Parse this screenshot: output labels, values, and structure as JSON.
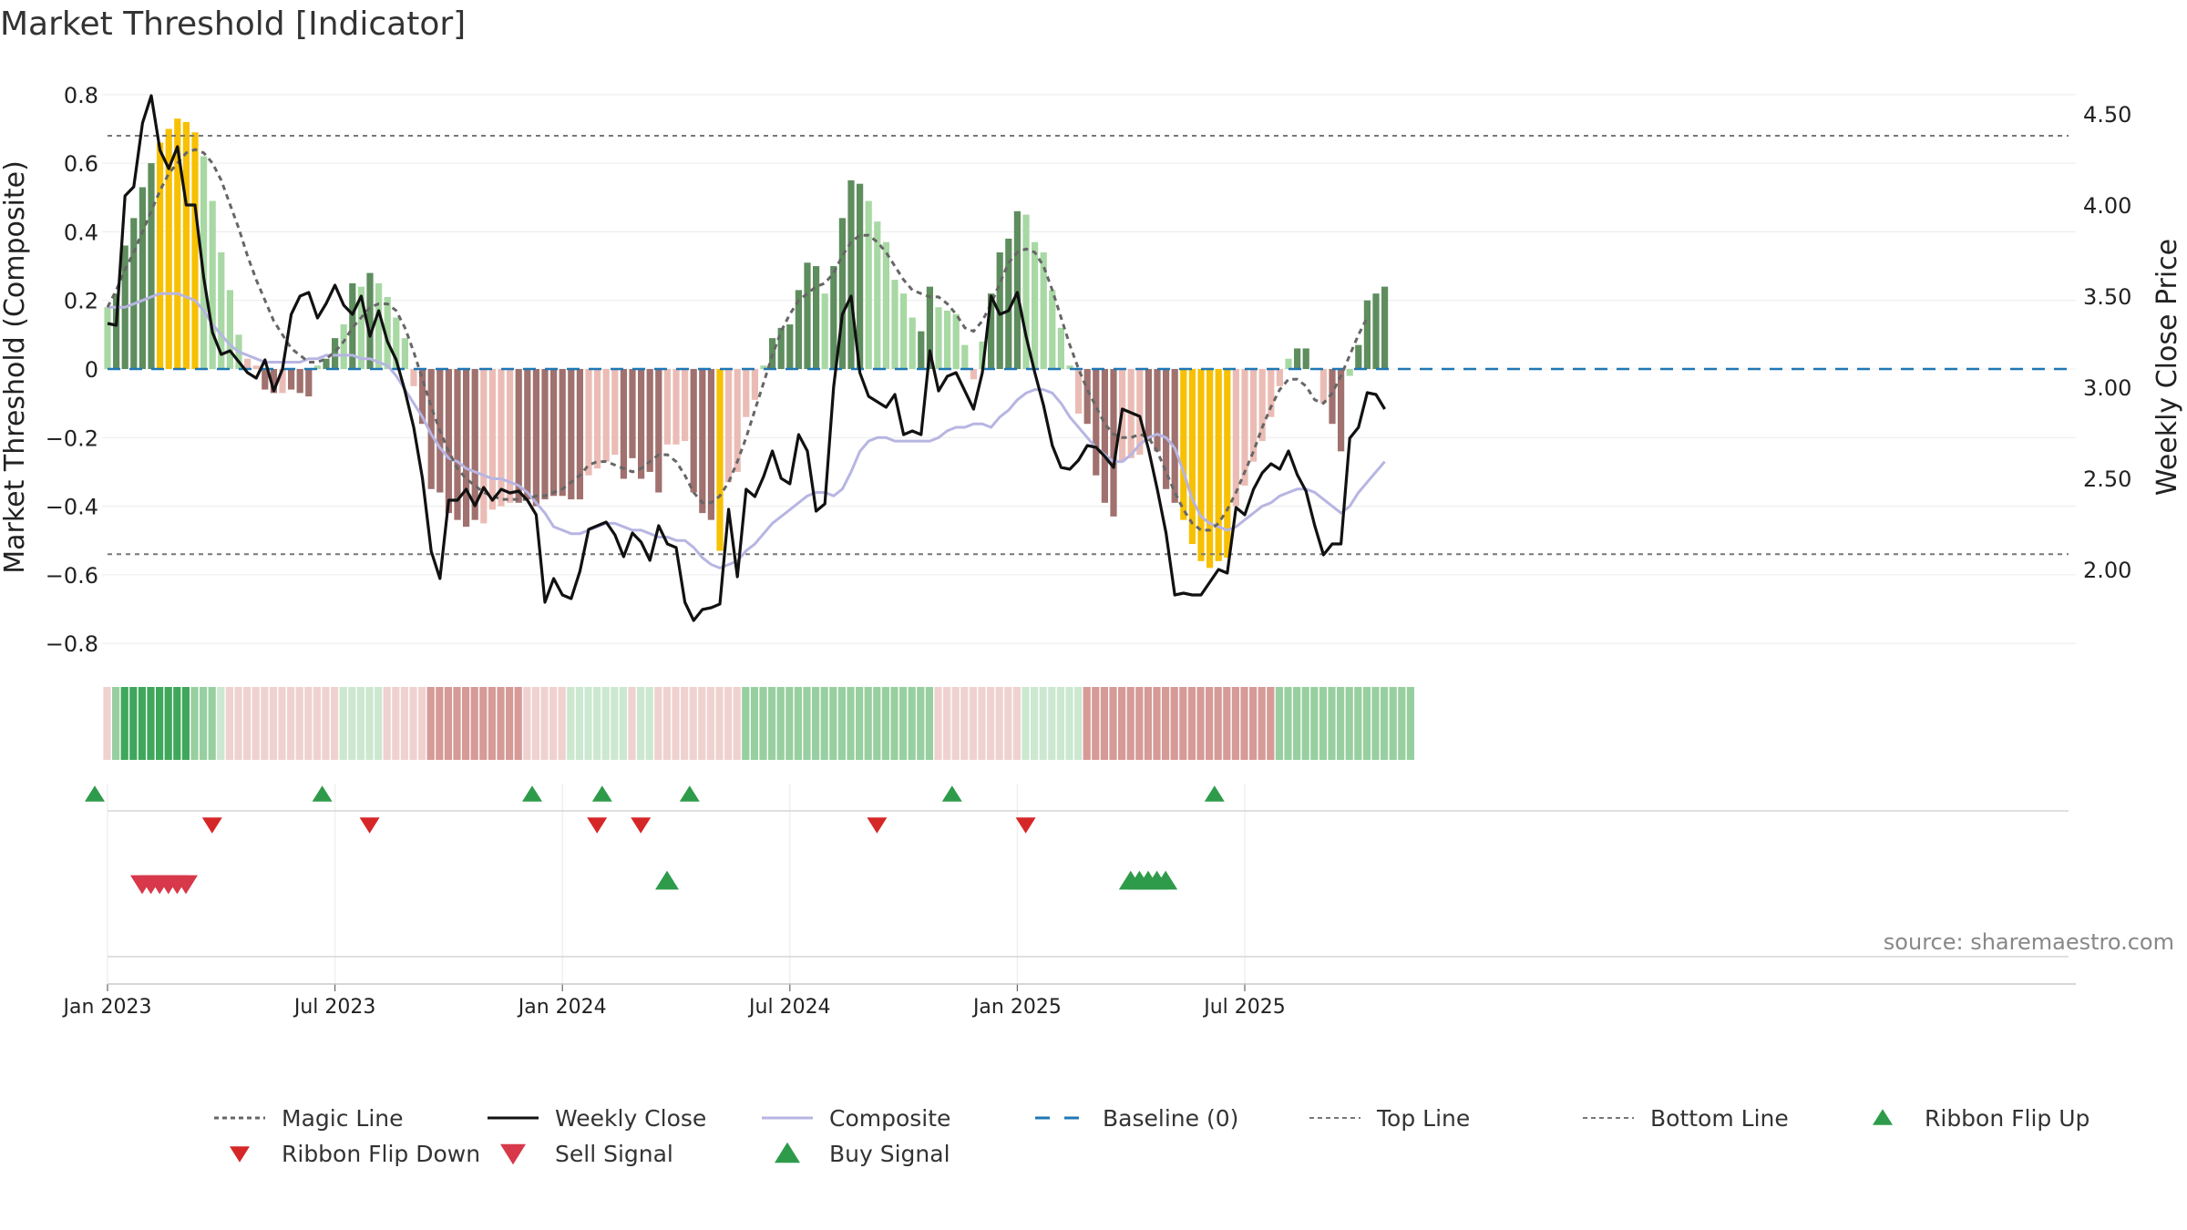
{
  "chart_data": {
    "type": "bar",
    "title": "Market Threshold [Indicator]",
    "ylabel": "Market Threshold (Composite)",
    "y2label": "Weekly Close Price",
    "ylim": [
      -0.85,
      0.85
    ],
    "y2lim": [
      1.5,
      4.7
    ],
    "y_ticks": [
      {
        "v": 0.8,
        "label": "0.8"
      },
      {
        "v": 0.6,
        "label": "0.6"
      },
      {
        "v": 0.4,
        "label": "0.4"
      },
      {
        "v": 0.2,
        "label": "0.2"
      },
      {
        "v": 0,
        "label": "0"
      },
      {
        "v": -0.2,
        "label": "−0.2"
      },
      {
        "v": -0.4,
        "label": "−0.4"
      },
      {
        "v": -0.6,
        "label": "−0.6"
      },
      {
        "v": -0.8,
        "label": "−0.8"
      }
    ],
    "y2_ticks": [
      {
        "v": 4.5,
        "label": "4.50"
      },
      {
        "v": 4.0,
        "label": "4.00"
      },
      {
        "v": 3.5,
        "label": "3.50"
      },
      {
        "v": 3.0,
        "label": "3.00"
      },
      {
        "v": 2.5,
        "label": "2.50"
      },
      {
        "v": 2.0,
        "label": "2.00"
      }
    ],
    "x_ticks": [
      {
        "week": 0,
        "label": "Jan 2023"
      },
      {
        "week": 26,
        "label": "Jul 2023"
      },
      {
        "week": 52,
        "label": "Jan 2024"
      },
      {
        "week": 78,
        "label": "Jul 2024"
      },
      {
        "week": 104,
        "label": "Jan 2025"
      },
      {
        "week": 130,
        "label": "Jul 2025"
      }
    ],
    "top_line": 0.68,
    "bottom_line": -0.54,
    "baseline": 0,
    "grid": true,
    "legend_position": "bottom",
    "source_note": "source: sharemaestro.com",
    "colors": {
      "bull_strong": "#5e8d5e",
      "bull_weak": "#a8d8a3",
      "bear_strong": "#a0716e",
      "bear_weak": "#ebbcb5",
      "extreme": "#f7c000",
      "weekly_close": "#111111",
      "composite": "#b7b5e2",
      "magic_line": "#666666",
      "baseline": "#1f77b4",
      "threshold_lines": "#777777",
      "flip_up": "#2e9b4a",
      "flip_down": "#d62728",
      "sell": "#d7384a",
      "buy": "#2e9b4a"
    },
    "composite_bars": [
      0.18,
      0.22,
      0.36,
      0.44,
      0.53,
      0.6,
      0.66,
      0.7,
      0.73,
      0.72,
      0.69,
      0.62,
      0.49,
      0.34,
      0.23,
      0.1,
      0.03,
      0.01,
      -0.06,
      -0.07,
      -0.07,
      -0.06,
      -0.07,
      -0.08,
      0.01,
      0.03,
      0.09,
      0.13,
      0.25,
      0.24,
      0.28,
      0.25,
      0.21,
      0.15,
      0.09,
      -0.05,
      -0.16,
      -0.35,
      -0.36,
      -0.42,
      -0.44,
      -0.46,
      -0.44,
      -0.45,
      -0.41,
      -0.4,
      -0.39,
      -0.39,
      -0.38,
      -0.4,
      -0.38,
      -0.37,
      -0.37,
      -0.38,
      -0.38,
      -0.31,
      -0.29,
      -0.27,
      -0.25,
      -0.32,
      -0.26,
      -0.32,
      -0.3,
      -0.36,
      -0.22,
      -0.22,
      -0.21,
      -0.36,
      -0.42,
      -0.44,
      -0.53,
      -0.33,
      -0.3,
      -0.14,
      -0.09,
      0.01,
      0.09,
      0.12,
      0.13,
      0.23,
      0.31,
      0.3,
      0.22,
      0.3,
      0.44,
      0.55,
      0.54,
      0.49,
      0.43,
      0.37,
      0.26,
      0.22,
      0.15,
      0.11,
      0.24,
      0.18,
      0.17,
      0.16,
      0.07,
      -0.03,
      0.08,
      0.22,
      0.34,
      0.38,
      0.46,
      0.45,
      0.37,
      0.34,
      0.23,
      0.12,
      0.01,
      -0.13,
      -0.16,
      -0.31,
      -0.39,
      -0.43,
      -0.27,
      -0.26,
      -0.25,
      -0.21,
      -0.24,
      -0.35,
      -0.39,
      -0.44,
      -0.51,
      -0.56,
      -0.58,
      -0.56,
      -0.55,
      -0.4,
      -0.34,
      -0.27,
      -0.21,
      -0.14,
      -0.05,
      0.03,
      0.06,
      0.06,
      0.0,
      -0.1,
      -0.16,
      -0.24,
      -0.02,
      0.07,
      0.2,
      0.22,
      0.24
    ],
    "bar_category": [
      "bw",
      "bs",
      "bs",
      "bs",
      "bs",
      "bs",
      "x",
      "x",
      "x",
      "x",
      "x",
      "bw",
      "bw",
      "bw",
      "bw",
      "bw",
      "rw",
      "rw",
      "rs",
      "rs",
      "rw",
      "rs",
      "rs",
      "rs",
      "bw",
      "bs",
      "bs",
      "bw",
      "bs",
      "bw",
      "bs",
      "bw",
      "bw",
      "bw",
      "bw",
      "rw",
      "rs",
      "rs",
      "rs",
      "rs",
      "rs",
      "rs",
      "rs",
      "rw",
      "rw",
      "rw",
      "rw",
      "rs",
      "rs",
      "rs",
      "rs",
      "rs",
      "rs",
      "rs",
      "rs",
      "rw",
      "rw",
      "rw",
      "rw",
      "rs",
      "rs",
      "rs",
      "rs",
      "rs",
      "rw",
      "rw",
      "rw",
      "rs",
      "rs",
      "rs",
      "x",
      "rw",
      "rw",
      "rw",
      "rw",
      "bw",
      "bs",
      "bs",
      "bs",
      "bs",
      "bs",
      "bs",
      "bw",
      "bs",
      "bs",
      "bs",
      "bs",
      "bw",
      "bw",
      "bw",
      "bw",
      "bw",
      "bw",
      "bs",
      "bs",
      "bw",
      "bw",
      "bw",
      "bw",
      "rw",
      "bw",
      "bs",
      "bs",
      "bs",
      "bs",
      "bw",
      "bw",
      "bw",
      "bw",
      "bw",
      "bw",
      "rw",
      "rs",
      "rs",
      "rs",
      "rs",
      "rw",
      "rw",
      "rw",
      "rs",
      "rs",
      "rs",
      "rs",
      "x",
      "x",
      "x",
      "x",
      "x",
      "x",
      "rw",
      "rw",
      "rw",
      "rw",
      "rw",
      "rw",
      "bw",
      "bs",
      "bs",
      "bw",
      "rw",
      "rs",
      "rs",
      "bw",
      "bs",
      "bs",
      "bs",
      "bs"
    ],
    "weekly_close": [
      3.35,
      3.34,
      4.05,
      4.1,
      4.45,
      4.6,
      4.3,
      4.2,
      4.32,
      4.0,
      4.0,
      3.6,
      3.3,
      3.18,
      3.2,
      3.14,
      3.08,
      3.05,
      3.15,
      2.98,
      3.1,
      3.4,
      3.5,
      3.52,
      3.38,
      3.46,
      3.56,
      3.45,
      3.4,
      3.5,
      3.28,
      3.42,
      3.25,
      3.15,
      2.98,
      2.78,
      2.5,
      2.1,
      1.95,
      2.38,
      2.38,
      2.44,
      2.35,
      2.45,
      2.38,
      2.44,
      2.42,
      2.43,
      2.38,
      2.3,
      1.82,
      1.95,
      1.86,
      1.84,
      1.99,
      2.22,
      2.24,
      2.26,
      2.19,
      2.07,
      2.2,
      2.15,
      2.05,
      2.24,
      2.14,
      2.12,
      1.82,
      1.72,
      1.78,
      1.79,
      1.81,
      2.33,
      1.96,
      2.44,
      2.4,
      2.51,
      2.65,
      2.5,
      2.47,
      2.74,
      2.65,
      2.32,
      2.36,
      3.0,
      3.4,
      3.5,
      3.08,
      2.95,
      2.92,
      2.89,
      2.96,
      2.74,
      2.76,
      2.74,
      3.2,
      2.98,
      3.06,
      3.08,
      2.98,
      2.88,
      3.08,
      3.5,
      3.4,
      3.42,
      3.52,
      3.28,
      3.08,
      2.9,
      2.68,
      2.56,
      2.55,
      2.6,
      2.68,
      2.67,
      2.62,
      2.56,
      2.88,
      2.86,
      2.84,
      2.66,
      2.44,
      2.2,
      1.86,
      1.87,
      1.86,
      1.86,
      1.93,
      2.0,
      1.98,
      2.34,
      2.3,
      2.44,
      2.53,
      2.58,
      2.55,
      2.65,
      2.52,
      2.43,
      2.24,
      2.08,
      2.14,
      2.14,
      2.72,
      2.78,
      2.97,
      2.96,
      2.88
    ],
    "composite_line": [
      0.18,
      0.18,
      0.18,
      0.19,
      0.2,
      0.21,
      0.22,
      0.22,
      0.22,
      0.21,
      0.2,
      0.17,
      0.13,
      0.1,
      0.07,
      0.05,
      0.04,
      0.03,
      0.02,
      0.02,
      0.02,
      0.02,
      0.02,
      0.03,
      0.03,
      0.04,
      0.04,
      0.04,
      0.04,
      0.03,
      0.03,
      0.02,
      0.01,
      -0.02,
      -0.06,
      -0.1,
      -0.14,
      -0.19,
      -0.23,
      -0.26,
      -0.27,
      -0.29,
      -0.3,
      -0.31,
      -0.32,
      -0.32,
      -0.33,
      -0.34,
      -0.36,
      -0.39,
      -0.42,
      -0.46,
      -0.47,
      -0.48,
      -0.48,
      -0.47,
      -0.46,
      -0.45,
      -0.45,
      -0.46,
      -0.47,
      -0.47,
      -0.48,
      -0.49,
      -0.49,
      -0.5,
      -0.5,
      -0.52,
      -0.55,
      -0.57,
      -0.58,
      -0.57,
      -0.56,
      -0.53,
      -0.51,
      -0.48,
      -0.45,
      -0.43,
      -0.41,
      -0.39,
      -0.37,
      -0.36,
      -0.36,
      -0.37,
      -0.35,
      -0.3,
      -0.24,
      -0.21,
      -0.2,
      -0.2,
      -0.21,
      -0.21,
      -0.21,
      -0.21,
      -0.21,
      -0.2,
      -0.18,
      -0.17,
      -0.17,
      -0.16,
      -0.16,
      -0.17,
      -0.14,
      -0.12,
      -0.09,
      -0.07,
      -0.06,
      -0.06,
      -0.07,
      -0.1,
      -0.14,
      -0.17,
      -0.2,
      -0.23,
      -0.25,
      -0.27,
      -0.27,
      -0.25,
      -0.22,
      -0.2,
      -0.19,
      -0.2,
      -0.23,
      -0.3,
      -0.38,
      -0.43,
      -0.45,
      -0.46,
      -0.47,
      -0.46,
      -0.44,
      -0.42,
      -0.4,
      -0.39,
      -0.37,
      -0.36,
      -0.35,
      -0.35,
      -0.36,
      -0.38,
      -0.4,
      -0.42,
      -0.4,
      -0.36,
      -0.33,
      -0.3,
      -0.27
    ],
    "magic_line": [
      0.18,
      0.23,
      0.29,
      0.34,
      0.4,
      0.46,
      0.52,
      0.57,
      0.6,
      0.63,
      0.64,
      0.63,
      0.6,
      0.55,
      0.48,
      0.41,
      0.33,
      0.26,
      0.2,
      0.14,
      0.1,
      0.06,
      0.04,
      0.02,
      0.02,
      0.03,
      0.05,
      0.08,
      0.12,
      0.15,
      0.18,
      0.19,
      0.19,
      0.17,
      0.12,
      0.05,
      -0.03,
      -0.11,
      -0.18,
      -0.24,
      -0.29,
      -0.32,
      -0.34,
      -0.36,
      -0.37,
      -0.38,
      -0.38,
      -0.38,
      -0.38,
      -0.37,
      -0.37,
      -0.36,
      -0.35,
      -0.33,
      -0.31,
      -0.28,
      -0.27,
      -0.27,
      -0.28,
      -0.29,
      -0.3,
      -0.29,
      -0.27,
      -0.25,
      -0.25,
      -0.27,
      -0.31,
      -0.36,
      -0.39,
      -0.39,
      -0.37,
      -0.33,
      -0.27,
      -0.2,
      -0.12,
      -0.04,
      0.04,
      0.11,
      0.16,
      0.2,
      0.22,
      0.24,
      0.25,
      0.28,
      0.33,
      0.37,
      0.39,
      0.39,
      0.37,
      0.34,
      0.3,
      0.26,
      0.23,
      0.22,
      0.21,
      0.21,
      0.19,
      0.16,
      0.12,
      0.11,
      0.14,
      0.19,
      0.25,
      0.31,
      0.34,
      0.35,
      0.34,
      0.3,
      0.23,
      0.15,
      0.07,
      0.0,
      -0.06,
      -0.11,
      -0.16,
      -0.19,
      -0.2,
      -0.2,
      -0.19,
      -0.2,
      -0.24,
      -0.3,
      -0.36,
      -0.41,
      -0.45,
      -0.47,
      -0.47,
      -0.45,
      -0.41,
      -0.36,
      -0.3,
      -0.24,
      -0.17,
      -0.11,
      -0.06,
      -0.03,
      -0.03,
      -0.05,
      -0.09,
      -0.1,
      -0.07,
      -0.02,
      0.04,
      0.1,
      0.15
    ],
    "ribbon": [
      "pr",
      "g",
      "G",
      "G",
      "G",
      "G",
      "G",
      "G",
      "G",
      "G",
      "g",
      "g",
      "g",
      "lg",
      "pr",
      "pr",
      "pr",
      "pr",
      "pr",
      "pr",
      "pr",
      "pr",
      "pr",
      "pr",
      "pr",
      "pr",
      "pr",
      "lg",
      "lg",
      "lg",
      "lg",
      "lg",
      "pr",
      "pr",
      "pr",
      "pr",
      "pr",
      "r",
      "r",
      "r",
      "r",
      "r",
      "r",
      "r",
      "r",
      "r",
      "r",
      "r",
      "pr",
      "pr",
      "pr",
      "pr",
      "pr",
      "lg",
      "lg",
      "lg",
      "lg",
      "lg",
      "lg",
      "lg",
      "pr",
      "lg",
      "lg",
      "pr",
      "pr",
      "pr",
      "pr",
      "pr",
      "pr",
      "pr",
      "pr",
      "pr",
      "pr",
      "g",
      "g",
      "g",
      "g",
      "g",
      "g",
      "g",
      "g",
      "g",
      "g",
      "g",
      "g",
      "g",
      "g",
      "g",
      "g",
      "g",
      "g",
      "g",
      "g",
      "g",
      "g",
      "pr",
      "pr",
      "pr",
      "pr",
      "pr",
      "pr",
      "pr",
      "pr",
      "pr",
      "pr",
      "lg",
      "lg",
      "lg",
      "lg",
      "lg",
      "lg",
      "lg",
      "r",
      "r",
      "r",
      "r",
      "r",
      "r",
      "r",
      "r",
      "r",
      "r",
      "r",
      "r",
      "r",
      "r",
      "r",
      "r",
      "r",
      "r",
      "r",
      "r",
      "r",
      "r",
      "g",
      "g",
      "g",
      "g",
      "g",
      "g",
      "g",
      "g",
      "g",
      "g",
      "g",
      "g",
      "g",
      "g",
      "g",
      "g"
    ],
    "ribbon_flip_up_weeks": [
      0,
      26,
      50,
      58,
      68,
      98,
      128
    ],
    "ribbon_flip_down_weeks": [
      13,
      31,
      57,
      62,
      89,
      106
    ],
    "sell_signal_weeks": [
      5,
      6,
      7,
      8,
      9,
      10
    ],
    "buy_signal_weeks": [
      65,
      118,
      119,
      120,
      121,
      122
    ]
  },
  "legend": [
    {
      "key": "magic",
      "label": "Magic Line"
    },
    {
      "key": "close",
      "label": "Weekly Close"
    },
    {
      "key": "composite",
      "label": "Composite"
    },
    {
      "key": "baseline",
      "label": "Baseline (0)"
    },
    {
      "key": "top",
      "label": "Top Line"
    },
    {
      "key": "bottom",
      "label": "Bottom Line"
    },
    {
      "key": "flipup",
      "label": "Ribbon Flip Up"
    },
    {
      "key": "flipdown",
      "label": "Ribbon Flip Down"
    },
    {
      "key": "sell",
      "label": "Sell Signal"
    },
    {
      "key": "buy",
      "label": "Buy Signal"
    }
  ]
}
